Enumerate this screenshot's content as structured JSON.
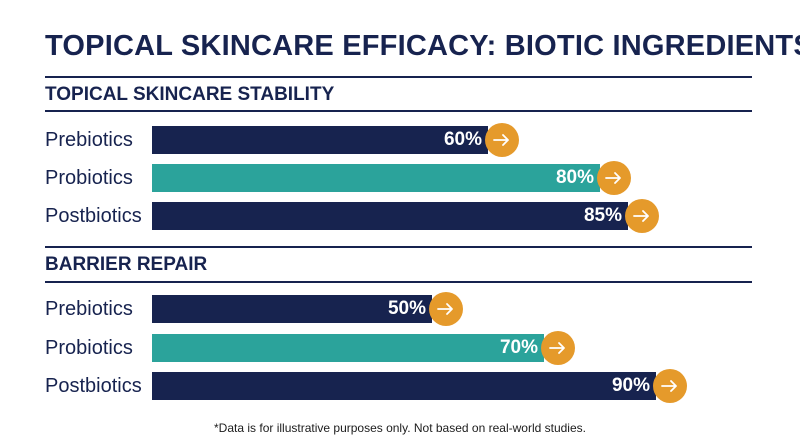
{
  "title": "TOPICAL SKINCARE EFFICACY: BIOTIC INGREDIENTS",
  "footnote": "*Data is for illustrative purposes only. Not based on real-world studies.",
  "colors": {
    "navy": "#17234f",
    "teal": "#2ba39b",
    "orange": "#e59a2b"
  },
  "icons": {
    "arrow": "arrow-right-icon"
  },
  "chart_data": [
    {
      "type": "bar",
      "title": "TOPICAL SKINCARE STABILITY",
      "categories": [
        "Prebiotics",
        "Probiotics",
        "Postbiotics"
      ],
      "values": [
        60,
        80,
        85
      ],
      "value_labels": [
        "60%",
        "80%",
        "85%"
      ],
      "bar_colors": [
        "#17234f",
        "#2ba39b",
        "#17234f"
      ],
      "xlim": [
        0,
        100
      ]
    },
    {
      "type": "bar",
      "title": "BARRIER REPAIR",
      "categories": [
        "Prebiotics",
        "Probiotics",
        "Postbiotics"
      ],
      "values": [
        50,
        70,
        90
      ],
      "value_labels": [
        "50%",
        "70%",
        "90%"
      ],
      "bar_colors": [
        "#17234f",
        "#2ba39b",
        "#17234f"
      ],
      "xlim": [
        0,
        100
      ]
    }
  ]
}
